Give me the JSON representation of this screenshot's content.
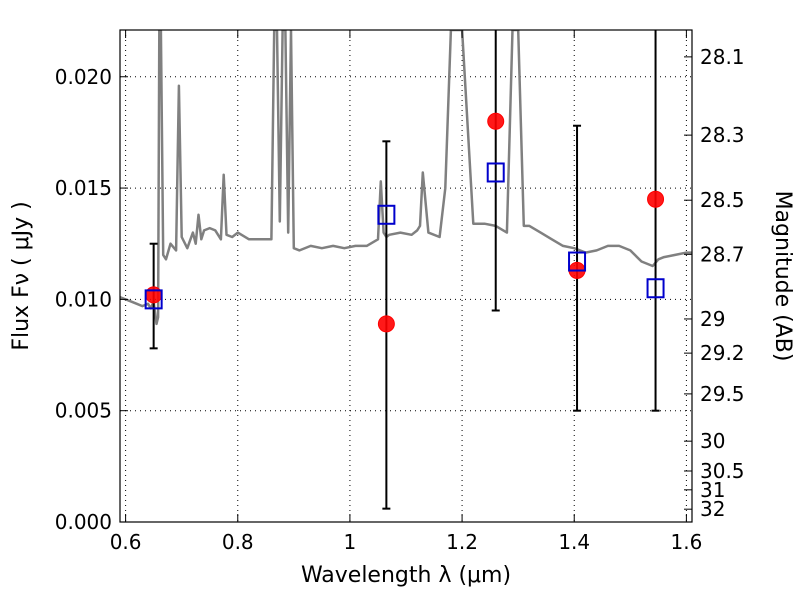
{
  "chart_data": {
    "type": "scatter",
    "title": "",
    "xlabel": "Wavelength  λ (μm)",
    "ylabel": "Flux  Fν  ( μJy )",
    "y2label": "Magnitude (AB)",
    "xlim": [
      0.59,
      1.61
    ],
    "ylim": [
      0.0,
      0.0221
    ],
    "grid": true,
    "x_ticks": [
      {
        "value": 0.6,
        "label": "0.6"
      },
      {
        "value": 0.8,
        "label": "0.8"
      },
      {
        "value": 1.0,
        "label": "1"
      },
      {
        "value": 1.2,
        "label": "1.2"
      },
      {
        "value": 1.4,
        "label": "1.4"
      },
      {
        "value": 1.6,
        "label": "1.6"
      }
    ],
    "y_ticks": [
      {
        "value": 0.0,
        "label": "0.000"
      },
      {
        "value": 0.005,
        "label": "0.005"
      },
      {
        "value": 0.01,
        "label": "0.010"
      },
      {
        "value": 0.015,
        "label": "0.015"
      },
      {
        "value": 0.02,
        "label": "0.020"
      }
    ],
    "y2_ticks": [
      {
        "mag": 28.1,
        "label": "28.1"
      },
      {
        "mag": 28.3,
        "label": "28.3"
      },
      {
        "mag": 28.5,
        "label": "28.5"
      },
      {
        "mag": 28.7,
        "label": "28.7"
      },
      {
        "mag": 29.0,
        "label": "29"
      },
      {
        "mag": 29.2,
        "label": "29.2"
      },
      {
        "mag": 29.5,
        "label": "29.5"
      },
      {
        "mag": 30.0,
        "label": "30"
      },
      {
        "mag": 30.5,
        "label": "30.5"
      },
      {
        "mag": 31.0,
        "label": "31"
      },
      {
        "mag": 32.0,
        "label": "32"
      }
    ],
    "colors": {
      "model": "#808080",
      "observed": "#ff0000",
      "synthetic": "#0000cc",
      "errorbar": "#000000"
    },
    "series": [
      {
        "type": "line",
        "x": [
          0.59,
          0.6,
          0.61,
          0.62,
          0.63,
          0.64,
          0.645,
          0.65,
          0.655,
          0.658,
          0.66,
          0.663,
          0.667,
          0.672,
          0.68,
          0.69,
          0.695,
          0.7,
          0.71,
          0.72,
          0.725,
          0.73,
          0.735,
          0.74,
          0.75,
          0.76,
          0.77,
          0.775,
          0.78,
          0.79,
          0.8,
          0.82,
          0.84,
          0.86,
          0.865,
          0.87,
          0.875,
          0.88,
          0.885,
          0.89,
          0.895,
          0.9,
          0.91,
          0.93,
          0.95,
          0.97,
          0.99,
          1.01,
          1.03,
          1.05,
          1.055,
          1.06,
          1.065,
          1.07,
          1.09,
          1.11,
          1.12,
          1.125,
          1.13,
          1.14,
          1.16,
          1.17,
          1.18,
          1.19,
          1.2,
          1.22,
          1.24,
          1.26,
          1.28,
          1.29,
          1.3,
          1.31,
          1.32,
          1.34,
          1.36,
          1.38,
          1.4,
          1.42,
          1.44,
          1.46,
          1.48,
          1.5,
          1.52,
          1.54,
          1.55,
          1.56,
          1.58,
          1.6,
          1.61
        ],
        "y": [
          0.0101,
          0.01,
          0.0099,
          0.0098,
          0.0097,
          0.0098,
          0.0096,
          0.0099,
          0.0089,
          0.0092,
          0.0221,
          0.0221,
          0.012,
          0.0118,
          0.0125,
          0.0122,
          0.0196,
          0.0128,
          0.0123,
          0.013,
          0.0125,
          0.0138,
          0.0127,
          0.0131,
          0.0132,
          0.0131,
          0.0127,
          0.0156,
          0.0129,
          0.0128,
          0.013,
          0.0127,
          0.0127,
          0.0127,
          0.0221,
          0.0221,
          0.0135,
          0.0221,
          0.0221,
          0.013,
          0.0221,
          0.0123,
          0.0122,
          0.0124,
          0.0123,
          0.0124,
          0.0123,
          0.0124,
          0.0124,
          0.0127,
          0.0153,
          0.013,
          0.0128,
          0.0129,
          0.013,
          0.0129,
          0.0131,
          0.0133,
          0.0157,
          0.013,
          0.0128,
          0.015,
          0.0221,
          0.0221,
          0.0221,
          0.0134,
          0.0134,
          0.0133,
          0.013,
          0.0221,
          0.0221,
          0.0133,
          0.0133,
          0.013,
          0.0127,
          0.0124,
          0.0123,
          0.0121,
          0.0122,
          0.0124,
          0.0124,
          0.0122,
          0.0117,
          0.0115,
          0.0118,
          0.0119,
          0.012,
          0.0121,
          0.0121
        ]
      },
      {
        "type": "scatter",
        "marker": "circle",
        "x": [
          0.65,
          1.065,
          1.26,
          1.405,
          1.545
        ],
        "y": [
          0.0102,
          0.0089,
          0.018,
          0.0113,
          0.0145
        ]
      },
      {
        "type": "scatter",
        "marker": "open-square",
        "x": [
          0.65,
          1.065,
          1.26,
          1.405,
          1.545
        ],
        "y": [
          0.01,
          0.0138,
          0.0157,
          0.0117,
          0.0105
        ]
      },
      {
        "type": "errorbar",
        "x": [
          0.65,
          1.065,
          1.26,
          1.405,
          1.545
        ],
        "y_low": [
          0.0078,
          0.0006,
          0.0095,
          0.005,
          0.005
        ],
        "y_high": [
          0.0125,
          0.0171,
          0.0221,
          0.0178,
          0.0221
        ]
      }
    ]
  }
}
